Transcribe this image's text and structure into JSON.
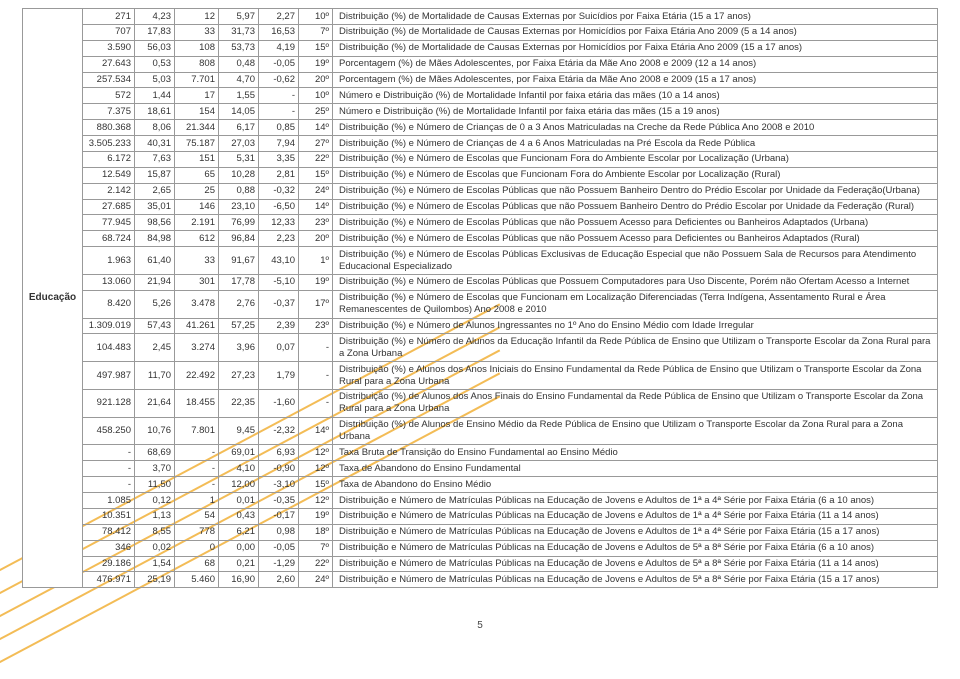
{
  "section_label": "Educação",
  "page_number": "5",
  "colors": {
    "border": "#999999",
    "text": "#333333",
    "accent": "#f2b84d",
    "background": "#ffffff"
  },
  "font": {
    "family": "Segoe UI",
    "size_pt": 7,
    "label_weight": 600
  },
  "columns": {
    "c1_width": 52,
    "c2_width": 40,
    "c3_width": 44,
    "c4_width": 40,
    "c5_width": 40,
    "c6_width": 34
  },
  "rows": [
    {
      "c1": "271",
      "c2": "4,23",
      "c3": "12",
      "c4": "5,97",
      "c5": "2,27",
      "c6": "10º",
      "c7": "Distribuição (%) de Mortalidade de Causas Externas por Suicídios por Faixa Etária (15 a 17 anos)"
    },
    {
      "c1": "707",
      "c2": "17,83",
      "c3": "33",
      "c4": "31,73",
      "c5": "16,53",
      "c6": "7º",
      "c7": "Distribuição (%) de Mortalidade de Causas Externas por Homicídios por Faixa Etária Ano 2009 (5 a 14 anos)"
    },
    {
      "c1": "3.590",
      "c2": "56,03",
      "c3": "108",
      "c4": "53,73",
      "c5": "4,19",
      "c6": "15º",
      "c7": "Distribuição (%) de Mortalidade de Causas Externas por Homicídios por Faixa Etária Ano 2009 (15 a 17 anos)"
    },
    {
      "c1": "27.643",
      "c2": "0,53",
      "c3": "808",
      "c4": "0,48",
      "c5": "-0,05",
      "c6": "19º",
      "c7": "Porcentagem (%) de Mães Adolescentes, por Faixa Etária da Mãe Ano 2008 e 2009 (12 a 14 anos)"
    },
    {
      "c1": "257.534",
      "c2": "5,03",
      "c3": "7.701",
      "c4": "4,70",
      "c5": "-0,62",
      "c6": "20º",
      "c7": "Porcentagem (%) de Mães Adolescentes, por Faixa Etária da Mãe Ano 2008 e 2009 (15 a 17 anos)"
    },
    {
      "c1": "572",
      "c2": "1,44",
      "c3": "17",
      "c4": "1,55",
      "c5": "-",
      "c6": "10º",
      "c7": "Número e Distribuição (%) de Mortalidade Infantil por faixa etária das mães (10 a 14 anos)"
    },
    {
      "c1": "7.375",
      "c2": "18,61",
      "c3": "154",
      "c4": "14,05",
      "c5": "-",
      "c6": "25º",
      "c7": "Número e Distribuição (%) de Mortalidade Infantil por faixa etária das mães (15 a 19 anos)"
    },
    {
      "c1": "880.368",
      "c2": "8,06",
      "c3": "21.344",
      "c4": "6,17",
      "c5": "0,85",
      "c6": "14º",
      "c7": "Distribuição (%) e Número de Crianças de 0 a 3 Anos Matriculadas na Creche da Rede Pública Ano 2008 e 2010"
    },
    {
      "c1": "3.505.233",
      "c2": "40,31",
      "c3": "75.187",
      "c4": "27,03",
      "c5": "7,94",
      "c6": "27º",
      "c7": "Distribuição (%) e Número de Crianças de 4 a 6 Anos Matriculadas na Pré Escola da Rede Pública"
    },
    {
      "c1": "6.172",
      "c2": "7,63",
      "c3": "151",
      "c4": "5,31",
      "c5": "3,35",
      "c6": "22º",
      "c7": "Distribuição (%) e Número de Escolas que Funcionam Fora do Ambiente Escolar por Localização (Urbana)"
    },
    {
      "c1": "12.549",
      "c2": "15,87",
      "c3": "65",
      "c4": "10,28",
      "c5": "2,81",
      "c6": "15º",
      "c7": "Distribuição (%) e Número de Escolas que Funcionam Fora do Ambiente Escolar por Localização (Rural)"
    },
    {
      "c1": "2.142",
      "c2": "2,65",
      "c3": "25",
      "c4": "0,88",
      "c5": "-0,32",
      "c6": "24º",
      "c7": "Distribuição (%) e Número de Escolas Públicas que não Possuem Banheiro Dentro do Prédio Escolar por Unidade da Federação(Urbana)"
    },
    {
      "c1": "27.685",
      "c2": "35,01",
      "c3": "146",
      "c4": "23,10",
      "c5": "-6,50",
      "c6": "14º",
      "c7": "Distribuição (%) e Número de Escolas Públicas que não Possuem Banheiro Dentro do Prédio Escolar por Unidade da Federação (Rural)"
    },
    {
      "c1": "77.945",
      "c2": "98,56",
      "c3": "2.191",
      "c4": "76,99",
      "c5": "12,33",
      "c6": "23º",
      "c7": "Distribuição (%) e Número de Escolas Públicas que não Possuem Acesso para Deficientes ou Banheiros Adaptados (Urbana)"
    },
    {
      "c1": "68.724",
      "c2": "84,98",
      "c3": "612",
      "c4": "96,84",
      "c5": "2,23",
      "c6": "20º",
      "c7": "Distribuição (%) e Número de Escolas Públicas que não Possuem Acesso para Deficientes ou Banheiros Adaptados (Rural)"
    },
    {
      "tall": true,
      "c1": "1.963",
      "c2": "61,40",
      "c3": "33",
      "c4": "91,67",
      "c5": "43,10",
      "c6": "1º",
      "c7": "Distribuição (%) e Número de Escolas Públicas Exclusivas de Educação Especial que não Possuem Sala de Recursos para Atendimento Educacional Especializado"
    },
    {
      "c1": "13.060",
      "c2": "21,94",
      "c3": "301",
      "c4": "17,78",
      "c5": "-5,10",
      "c6": "19º",
      "c7": "Distribuição (%) e Número de Escolas Públicas que Possuem Computadores para Uso Discente, Porém não Ofertam Acesso a Internet"
    },
    {
      "tall": true,
      "c1": "8.420",
      "c2": "5,26",
      "c3": "3.478",
      "c4": "2,76",
      "c5": "-0,37",
      "c6": "17º",
      "c7": "Distribuição (%) e Número de Escolas que Funcionam em Localização Diferenciadas (Terra Indígena, Assentamento Rural e Área Remanescentes de Quilombos) Ano 2008 e 2010"
    },
    {
      "c1": "1.309.019",
      "c2": "57,43",
      "c3": "41.261",
      "c4": "57,25",
      "c5": "2,39",
      "c6": "23º",
      "c7": "Distribuição (%) e Número de Alunos Ingressantes no 1º Ano do Ensino Médio com Idade Irregular"
    },
    {
      "tall": true,
      "c1": "104.483",
      "c2": "2,45",
      "c3": "3.274",
      "c4": "3,96",
      "c5": "0,07",
      "c6": "-",
      "c7": "Distribuição (%) e Número de Alunos da Educação Infantil da Rede Pública de Ensino que Utilizam o Transporte Escolar da Zona Rural para a Zona Urbana"
    },
    {
      "tall": true,
      "c1": "497.987",
      "c2": "11,70",
      "c3": "22.492",
      "c4": "27,23",
      "c5": "1,79",
      "c6": "-",
      "c7": "Distribuição (%) e Alunos dos Anos Iniciais do Ensino Fundamental da Rede Pública de Ensino que Utilizam o Transporte Escolar da Zona Rural para a Zona Urbana"
    },
    {
      "tall": true,
      "c1": "921.128",
      "c2": "21,64",
      "c3": "18.455",
      "c4": "22,35",
      "c5": "-1,60",
      "c6": "-",
      "c7": "Distribuição (%) de Alunos dos Anos Finais do Ensino Fundamental da Rede Pública de Ensino que Utilizam o Transporte Escolar da Zona Rural para a Zona Urbana"
    },
    {
      "c1": "458.250",
      "c2": "10,76",
      "c3": "7.801",
      "c4": "9,45",
      "c5": "-2,32",
      "c6": "14º",
      "c7": "Distribuição (%) de Alunos de Ensino Médio da Rede Pública de Ensino que Utilizam o Transporte Escolar da Zona Rural para a Zona Urbana"
    },
    {
      "c1": "-",
      "c2": "68,69",
      "c3": "-",
      "c4": "69,01",
      "c5": "6,93",
      "c6": "12º",
      "c7": "Taxa Bruta de Transição do Ensino Fundamental ao Ensino Médio"
    },
    {
      "c1": "-",
      "c2": "3,70",
      "c3": "-",
      "c4": "4,10",
      "c5": "-0,90",
      "c6": "12º",
      "c7": "Taxa de Abandono do Ensino Fundamental"
    },
    {
      "c1": "-",
      "c2": "11,50",
      "c3": "-",
      "c4": "12,00",
      "c5": "-3,10",
      "c6": "15º",
      "c7": "Taxa de Abandono do Ensino Médio"
    },
    {
      "c1": "1.085",
      "c2": "0,12",
      "c3": "1",
      "c4": "0,01",
      "c5": "-0,35",
      "c6": "12º",
      "c7": "Distribuição e Número de Matrículas Públicas na Educação de Jovens e Adultos de 1ª a 4ª Série por Faixa Etária (6 a 10 anos)"
    },
    {
      "c1": "10.351",
      "c2": "1,13",
      "c3": "54",
      "c4": "0,43",
      "c5": "-0,17",
      "c6": "19º",
      "c7": "Distribuição e Número de Matrículas Públicas na Educação de Jovens e Adultos de 1ª a 4ª Série por Faixa Etária (11 a 14 anos)"
    },
    {
      "c1": "78.412",
      "c2": "8,55",
      "c3": "778",
      "c4": "6,21",
      "c5": "0,98",
      "c6": "18º",
      "c7": "Distribuição e Número de Matrículas Públicas na Educação de Jovens e Adultos de 1ª a 4ª Série por Faixa Etária (15 a 17 anos)"
    },
    {
      "c1": "346",
      "c2": "0,02",
      "c3": "0",
      "c4": "0,00",
      "c5": "-0,05",
      "c6": "7º",
      "c7": "Distribuição e Número de Matrículas Públicas na Educação de Jovens e Adultos de 5ª a 8ª Série por Faixa Etária (6 a 10 anos)"
    },
    {
      "c1": "29.186",
      "c2": "1,54",
      "c3": "68",
      "c4": "0,21",
      "c5": "-1,29",
      "c6": "22º",
      "c7": "Distribuição e Número de Matrículas Públicas na Educação de Jovens e Adultos de 5ª a 8ª Série por Faixa Etária (11 a 14 anos)"
    },
    {
      "c1": "476.971",
      "c2": "25,19",
      "c3": "5.460",
      "c4": "16,90",
      "c5": "2,60",
      "c6": "24º",
      "c7": "Distribuição e Número de Matrículas Públicas na Educação de Jovens e Adultos de 5ª a 8ª Série por Faixa Etária (15 a 17 anos)"
    }
  ]
}
